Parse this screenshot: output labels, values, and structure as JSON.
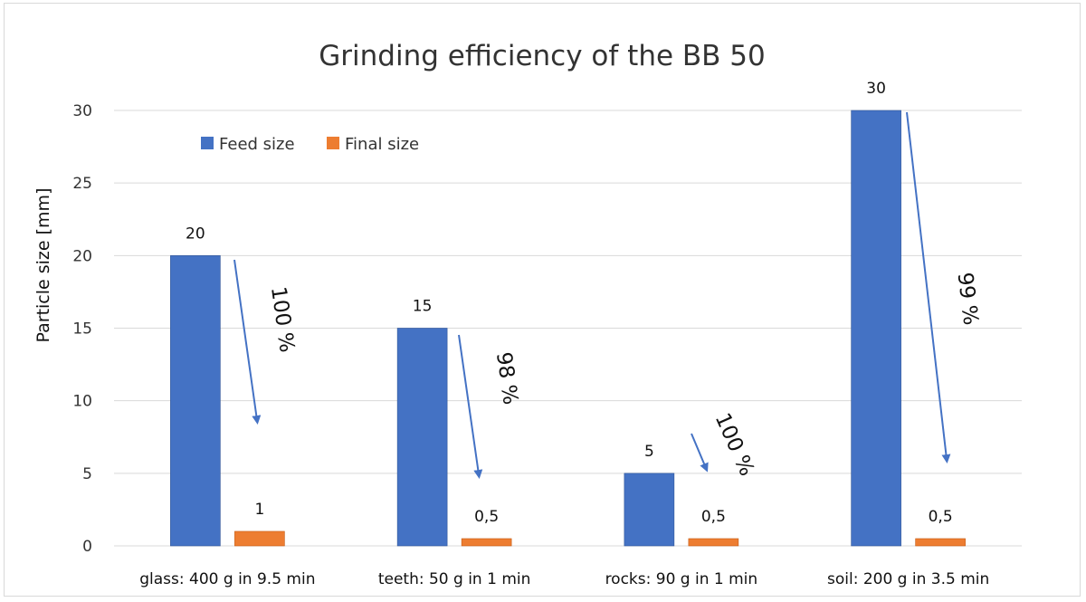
{
  "chart_data": {
    "type": "bar",
    "title": "Grinding efficiency of the BB 50",
    "xlabel": "",
    "ylabel": "Particle size [mm]",
    "ylim": [
      0,
      30
    ],
    "yticks": [
      "0",
      "5",
      "10",
      "15",
      "20",
      "25",
      "30"
    ],
    "ytick_values": [
      0,
      5,
      10,
      15,
      20,
      25,
      30
    ],
    "grid": true,
    "legend": "top-left",
    "categories": [
      "glass: 400 g in 9.5 min",
      "teeth: 50 g in 1 min",
      "rocks: 90 g in 1 min",
      "soil: 200 g in 3.5 min"
    ],
    "series": [
      {
        "name": "Feed size",
        "color": "#4472c4",
        "values": [
          20,
          15,
          5,
          30
        ],
        "labels": [
          "20",
          "15",
          "5",
          "30"
        ]
      },
      {
        "name": "Final size",
        "color": "#ed7d31",
        "values": [
          1,
          0.5,
          0.5,
          0.5
        ],
        "labels": [
          "1",
          "0,5",
          "0,5",
          "0,5"
        ]
      }
    ],
    "annotations": [
      {
        "category": "glass: 400 g in 9.5 min",
        "text": "100 %"
      },
      {
        "category": "teeth: 50 g in 1 min",
        "text": "98 %"
      },
      {
        "category": "rocks: 90 g in 1 min",
        "text": "100 %"
      },
      {
        "category": "soil: 200 g in 3.5 min",
        "text": "99 %"
      }
    ],
    "annotation_color": "#4472c4"
  }
}
